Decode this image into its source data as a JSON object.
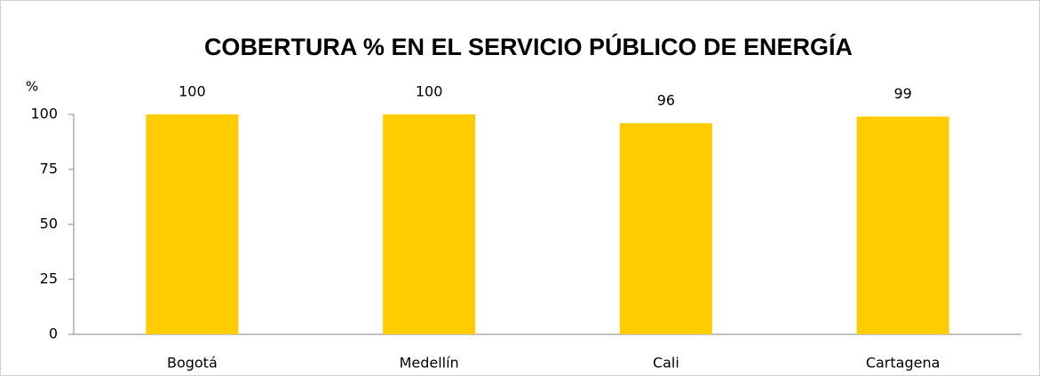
{
  "chart_data": {
    "type": "bar",
    "title": "COBERTURA % EN EL SERVICIO PÚBLICO DE ENERGÍA",
    "y_label": "%",
    "categories": [
      "Bogotá",
      "Medellín",
      "Cali",
      "Cartagena"
    ],
    "values": [
      100,
      100,
      96,
      99
    ],
    "color": "#ffcc00",
    "ylim": [
      0,
      100
    ],
    "yticks": [
      0,
      25,
      50,
      75,
      100
    ],
    "grid": false
  }
}
